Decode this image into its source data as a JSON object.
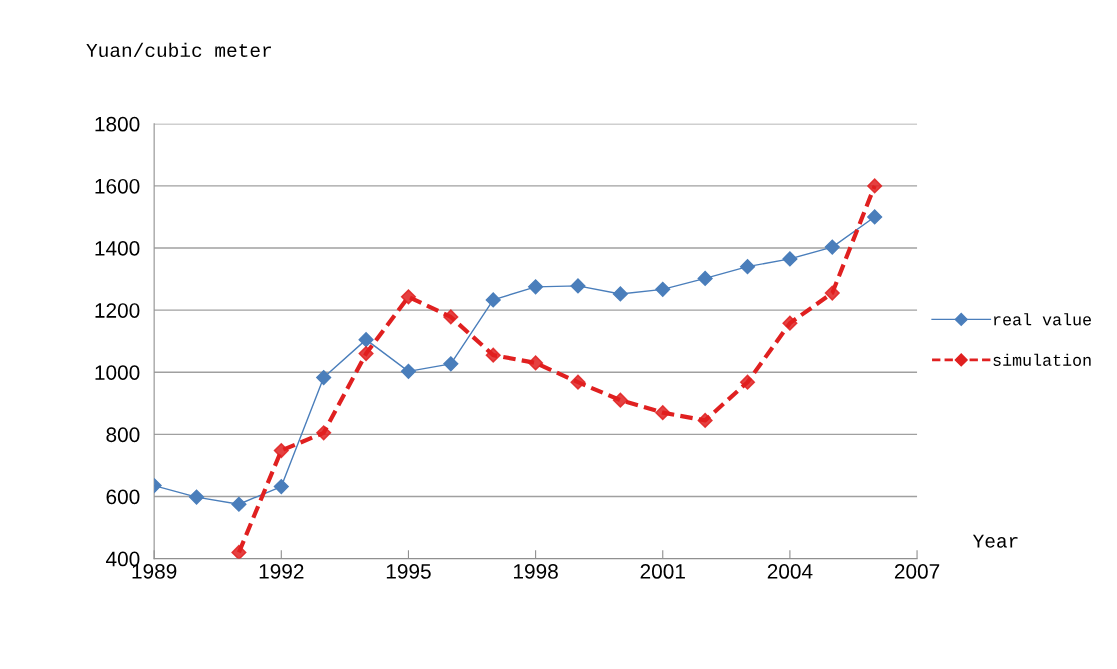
{
  "chart_data": {
    "type": "line",
    "xlabel": "Year",
    "ylabel": "Yuan/cubic meter",
    "x": [
      1989,
      1990,
      1991,
      1992,
      1993,
      1994,
      1995,
      1996,
      1997,
      1998,
      1999,
      2000,
      2001,
      2002,
      2003,
      2004,
      2005,
      2006
    ],
    "series": [
      {
        "name": "real value",
        "color": "#4a7ebb",
        "line_style": "solid",
        "values": [
          635,
          598,
          575,
          632,
          983,
          1105,
          1003,
          1027,
          1233,
          1275,
          1278,
          1252,
          1267,
          1302,
          1340,
          1365,
          1403,
          1500
        ]
      },
      {
        "name": "simulation",
        "color": "#e02020",
        "line_style": "dashed",
        "values": [
          null,
          null,
          420,
          748,
          805,
          1060,
          1243,
          1178,
          1055,
          1030,
          968,
          910,
          870,
          845,
          968,
          1158,
          1255,
          1600
        ]
      }
    ],
    "xlim": [
      1989,
      2007
    ],
    "xticks": [
      1989,
      1992,
      1995,
      1998,
      2001,
      2004,
      2007
    ],
    "ylim": [
      400,
      1800
    ],
    "yticks": [
      400,
      600,
      800,
      1000,
      1200,
      1400,
      1600,
      1800
    ],
    "grid": "y",
    "legend": "right",
    "marker": "diamond"
  }
}
